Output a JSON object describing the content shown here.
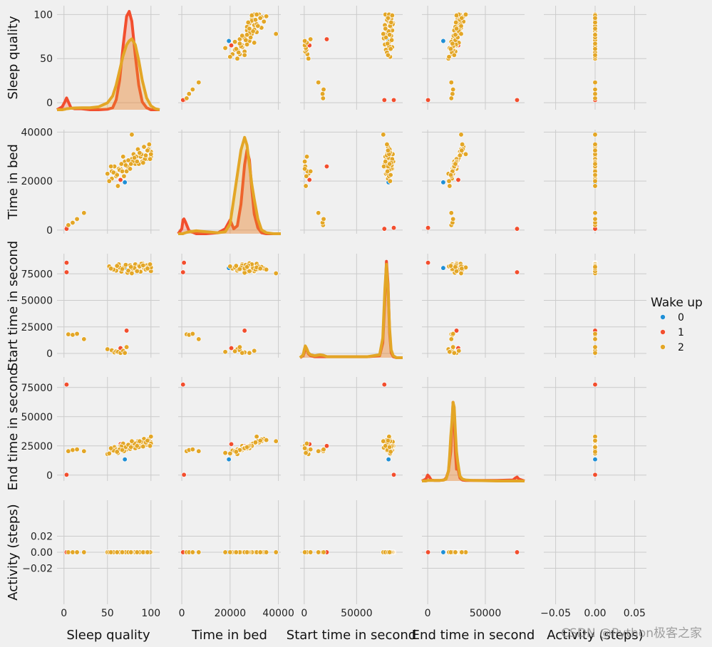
{
  "chart_data": {
    "type": "scatter",
    "kind": "pairplot",
    "variables": [
      "Sleep quality",
      "Time in bed",
      "Start time in second",
      "End time in second",
      "Activity (steps)"
    ],
    "ranges": {
      "Sleep quality": [
        -8,
        110
      ],
      "Time in bed": [
        -1500,
        41000
      ],
      "Start time in second": [
        -4000,
        94000
      ],
      "End time in second": [
        -5000,
        84000
      ],
      "Activity (steps)": [
        -0.065,
        0.065
      ]
    },
    "ticks": {
      "Sleep quality": [
        0,
        50,
        100
      ],
      "Time in bed": [
        0,
        20000,
        40000
      ],
      "Start time in second": [
        0,
        25000,
        50000,
        75000
      ],
      "End time in second": [
        0,
        25000,
        50000,
        75000
      ],
      "Activity (steps)": [
        -0.02,
        0.0,
        0.02
      ]
    },
    "ticks_bottom": {
      "Sleep quality": [
        0,
        50,
        100
      ],
      "Time in bed": [
        0,
        20000,
        40000
      ],
      "Start time in second": [
        0,
        50000
      ],
      "End time in second": [
        0,
        50000
      ],
      "Activity (steps)": [
        -0.05,
        0.0,
        0.05
      ]
    },
    "tick_labels": {
      "Sleep quality": [
        "0",
        "50",
        "100"
      ],
      "Time in bed": [
        "0",
        "20000",
        "40000"
      ],
      "Start time in second": [
        "0",
        "25000",
        "50000",
        "75000"
      ],
      "End time in second": [
        "0",
        "25000",
        "50000",
        "75000"
      ],
      "Activity (steps)": [
        "−0.02",
        "0.00",
        "0.02"
      ]
    },
    "tick_labels_bottom": {
      "Sleep quality": [
        "0",
        "50",
        "100"
      ],
      "Time in bed": [
        "0",
        "20000",
        "40000"
      ],
      "Start time in second": [
        "0",
        "50000"
      ],
      "End time in second": [
        "0",
        "50000"
      ],
      "Activity (steps)": [
        "−0.05",
        "0.00",
        "0.05"
      ]
    },
    "legend": {
      "title": "Wake up",
      "entries": [
        {
          "label": "0",
          "color": "#1f8fd6"
        },
        {
          "label": "1",
          "color": "#f24e2e"
        },
        {
          "label": "2",
          "color": "#e3a626"
        }
      ],
      "placement": "right"
    },
    "series": [
      {
        "name": "0",
        "points": [
          [
            70,
            19500,
            80500,
            13500,
            0
          ]
        ]
      },
      {
        "name": "1",
        "points": [
          [
            3,
            900,
            85500,
            300,
            0
          ],
          [
            3,
            500,
            76500,
            77500,
            0
          ],
          [
            65,
            20500,
            5000,
            26500,
            0
          ],
          [
            72,
            26000,
            21500,
            25000,
            0
          ]
        ]
      },
      {
        "name": "2",
        "points": [
          [
            5,
            2000,
            18000,
            20500,
            0
          ],
          [
            10,
            3000,
            17500,
            21500,
            0
          ],
          [
            15,
            4500,
            18500,
            22000,
            0
          ],
          [
            23,
            7000,
            13500,
            20500,
            0
          ],
          [
            50,
            23000,
            4000,
            18000,
            0
          ],
          [
            55,
            24000,
            3000,
            21000,
            0
          ],
          [
            58,
            26000,
            1000,
            24000,
            0
          ],
          [
            60,
            22000,
            2000,
            20000,
            0
          ],
          [
            62,
            18000,
            1500,
            19000,
            0
          ],
          [
            65,
            25000,
            500,
            25000,
            0
          ],
          [
            68,
            30000,
            2500,
            27000,
            0
          ],
          [
            70,
            28000,
            500,
            23000,
            0
          ],
          [
            72,
            24000,
            6000,
            22000,
            0
          ],
          [
            75,
            26000,
            78000,
            24000,
            0
          ],
          [
            78,
            29000,
            82000,
            26000,
            0
          ],
          [
            80,
            31000,
            79000,
            28000,
            0
          ],
          [
            82,
            27000,
            84000,
            23000,
            0
          ],
          [
            85,
            33000,
            81000,
            29000,
            0
          ],
          [
            88,
            30000,
            77000,
            27000,
            0
          ],
          [
            90,
            28000,
            85000,
            25000,
            0
          ],
          [
            92,
            34000,
            80000,
            31000,
            0
          ],
          [
            95,
            29000,
            83000,
            26000,
            0
          ],
          [
            98,
            35000,
            79000,
            30000,
            0
          ],
          [
            100,
            32000,
            82000,
            28000,
            0
          ],
          [
            55,
            21000,
            80000,
            21000,
            0
          ],
          [
            60,
            23000,
            78000,
            22000,
            0
          ],
          [
            63,
            25000,
            84000,
            21500,
            0
          ],
          [
            66,
            27000,
            77000,
            24500,
            0
          ],
          [
            69,
            22000,
            81000,
            20500,
            0
          ],
          [
            73,
            26000,
            76000,
            23500,
            0
          ],
          [
            76,
            25000,
            83000,
            22500,
            0
          ],
          [
            79,
            28000,
            80000,
            25500,
            0
          ],
          [
            83,
            30000,
            78500,
            27500,
            0
          ],
          [
            86,
            27000,
            82500,
            24000,
            0
          ],
          [
            89,
            31000,
            84500,
            28500,
            0
          ],
          [
            93,
            29000,
            79500,
            26500,
            0
          ],
          [
            97,
            33000,
            81500,
            30500,
            0
          ],
          [
            100,
            30000,
            77500,
            27000,
            0
          ],
          [
            52,
            20000,
            82000,
            18500,
            0
          ],
          [
            57,
            23500,
            79000,
            21000,
            0
          ],
          [
            64,
            24500,
            81000,
            22000,
            0
          ],
          [
            71,
            26500,
            83500,
            24000,
            0
          ],
          [
            74,
            28500,
            78000,
            26000,
            0
          ],
          [
            81,
            29500,
            80500,
            27000,
            0
          ],
          [
            87,
            31500,
            82000,
            29000,
            0
          ],
          [
            94,
            30500,
            79000,
            28000,
            0
          ],
          [
            54,
            26000,
            80000,
            23000,
            0
          ],
          [
            78,
            39000,
            75500,
            29000,
            0
          ],
          [
            100,
            31000,
            81000,
            33000,
            0
          ],
          [
            99,
            29000,
            84000,
            25000,
            0
          ],
          [
            67,
            24000,
            79500,
            21500,
            0
          ],
          [
            84,
            28000,
            77500,
            25000,
            0
          ],
          [
            91,
            27500,
            83000,
            24500,
            0
          ],
          [
            96,
            32500,
            80000,
            29500,
            0
          ],
          [
            61,
            22500,
            82500,
            20000,
            0
          ],
          [
            77,
            27000,
            81500,
            24000,
            0
          ]
        ]
      }
    ],
    "kde": {
      "x_positions": {
        "Sleep quality": [
          -8,
          -2,
          1,
          3,
          5,
          8,
          12,
          20,
          30,
          40,
          50,
          56,
          60,
          64,
          68,
          72,
          75,
          78,
          82,
          86,
          90,
          95,
          100,
          105,
          110
        ],
        "Time in bed": [
          -1500,
          0,
          500,
          900,
          1500,
          3000,
          6000,
          10000,
          15000,
          18000,
          20000,
          21500,
          23000,
          24500,
          26000,
          27000,
          28000,
          29000,
          30000,
          31500,
          33000,
          35000,
          38000,
          41000
        ],
        "Start time in second": [
          -4000,
          -1000,
          0,
          1000,
          2500,
          4000,
          6000,
          10000,
          15000,
          18000,
          22000,
          40000,
          60000,
          72000,
          75000,
          77000,
          78500,
          80000,
          81500,
          83000,
          85000,
          88000,
          94000
        ],
        "End time in second": [
          -5000,
          -1500,
          0,
          1500,
          3000,
          6000,
          10000,
          14000,
          16000,
          18000,
          19000,
          20000,
          21000,
          22000,
          23000,
          24000,
          25000,
          26000,
          27000,
          28000,
          30000,
          33000,
          40000,
          60000,
          74000,
          76000,
          77500,
          79000,
          84000
        ]
      },
      "densities": {
        "Sleep quality": {
          "1": [
            0,
            0.03,
            0.08,
            0.12,
            0.08,
            0.02,
            0.01,
            0.01,
            0,
            0,
            0.005,
            0.02,
            0.1,
            0.3,
            0.65,
            0.95,
            1.0,
            0.9,
            0.55,
            0.25,
            0.08,
            0.02,
            0,
            0,
            0
          ],
          "2": [
            0,
            0,
            0.005,
            0.01,
            0.012,
            0.015,
            0.018,
            0.02,
            0.02,
            0.03,
            0.07,
            0.14,
            0.25,
            0.4,
            0.55,
            0.66,
            0.7,
            0.72,
            0.66,
            0.5,
            0.3,
            0.12,
            0.04,
            0.01,
            0
          ]
        },
        "Time in bed": {
          "1": [
            0,
            0.05,
            0.14,
            0.15,
            0.12,
            0.03,
            0,
            0,
            0.01,
            0.05,
            0.14,
            0.05,
            0.08,
            0.3,
            0.7,
            0.85,
            0.75,
            0.45,
            0.2,
            0.06,
            0.01,
            0,
            0,
            0
          ],
          "2": [
            0,
            0,
            0,
            0.005,
            0.01,
            0.02,
            0.03,
            0.02,
            0.01,
            0.02,
            0.1,
            0.35,
            0.6,
            0.85,
            0.98,
            0.9,
            0.7,
            0.5,
            0.35,
            0.15,
            0.04,
            0.01,
            0,
            0
          ]
        },
        "Start time in second": {
          "1": [
            0,
            0.02,
            0.05,
            0.1,
            0.08,
            0.04,
            0.02,
            0.01,
            0.01,
            0.01,
            0.01,
            0.01,
            0.01,
            0.02,
            0.15,
            0.6,
            0.98,
            0.75,
            0.25,
            0.05,
            0.01,
            0,
            0
          ],
          "2": [
            0,
            0.03,
            0.08,
            0.12,
            0.09,
            0.05,
            0.03,
            0.02,
            0.03,
            0.025,
            0.01,
            0.01,
            0.01,
            0.03,
            0.2,
            0.7,
            0.95,
            0.7,
            0.3,
            0.08,
            0.02,
            0,
            0
          ]
        },
        "End time in second": {
          "1": [
            0,
            0.02,
            0.06,
            0.04,
            0.01,
            0.005,
            0.005,
            0.01,
            0.03,
            0.1,
            0.2,
            0.3,
            0.55,
            0.8,
            0.62,
            0.3,
            0.12,
            0.15,
            0.08,
            0.03,
            0.01,
            0.005,
            0.005,
            0.005,
            0.01,
            0.03,
            0.04,
            0.02,
            0
          ],
          "2": [
            0,
            0,
            0.005,
            0.005,
            0.005,
            0.005,
            0.005,
            0.01,
            0.02,
            0.1,
            0.25,
            0.45,
            0.6,
            0.8,
            0.75,
            0.5,
            0.3,
            0.2,
            0.12,
            0.05,
            0.02,
            0.01,
            0.005,
            0,
            0,
            0,
            0,
            0,
            0
          ]
        }
      }
    },
    "grid": true
  },
  "watermark": "CSDN @Python极客之家"
}
